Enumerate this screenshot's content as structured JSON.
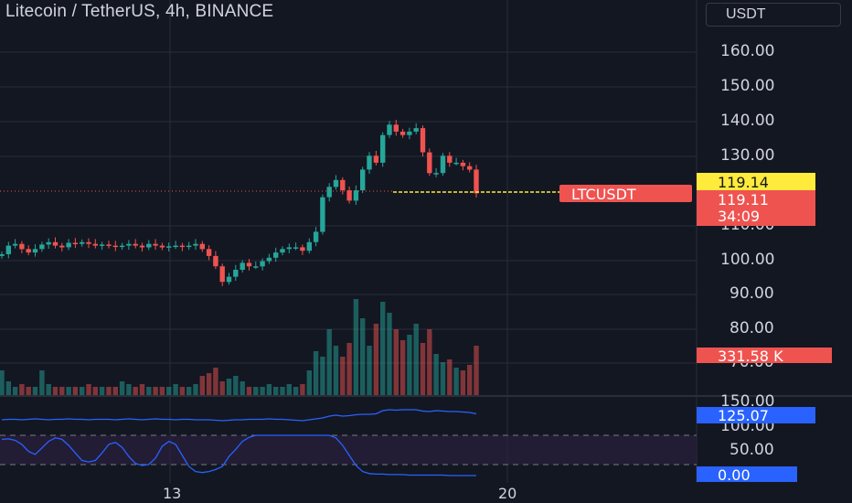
{
  "header": {
    "symbol_title": "Litecoin / TetherUS, 4h, BINANCE",
    "currency": "USDT"
  },
  "price_axis": {
    "ticks": [
      "160.00",
      "150.00",
      "140.00",
      "130.00",
      "110.00",
      "100.00",
      "90.00",
      "80.00",
      "70.00"
    ]
  },
  "tags": {
    "high_label": "119.14",
    "symbol_label": "LTCUSDT",
    "last_price": "119.11",
    "countdown": "34:09",
    "volume_label": "331.58 K"
  },
  "indicator_axis": {
    "ticks": [
      "150.00",
      "100.00",
      "50.00"
    ],
    "value_label": "125.07",
    "zero_label": "0.00"
  },
  "time_axis": {
    "labels": [
      "13",
      "20"
    ]
  },
  "colors": {
    "background": "#131722",
    "bull": "#26a69a",
    "bear": "#ef5350",
    "indicator_line": "#2962ff",
    "highlight": "#ffeb3b"
  },
  "chart_data": {
    "type": "candlestick",
    "ylim": [
      65,
      166
    ],
    "close": [
      101.5,
      104.0,
      104.5,
      103.0,
      102.0,
      103.0,
      104.3,
      105.0,
      104.0,
      103.5,
      104.8,
      104.5,
      105.0,
      104.5,
      104.0,
      104.3,
      104.0,
      103.6,
      104.0,
      104.5,
      104.0,
      103.5,
      104.5,
      104.0,
      103.5,
      103.8,
      104.0,
      103.6,
      104.0,
      104.5,
      103.0,
      101.0,
      98.0,
      93.5,
      95.0,
      97.0,
      99.0,
      98.0,
      98.0,
      99.5,
      100.5,
      102.0,
      103.0,
      103.5,
      103.5,
      102.5,
      105.0,
      108.0,
      118.0,
      121.0,
      123.0,
      120.0,
      117.0,
      120.0,
      126.0,
      130.0,
      128.0,
      136.0,
      139.0,
      137.0,
      136.0,
      137.0,
      138.0,
      131.0,
      125.0,
      125.0,
      130.0,
      128.0,
      128.0,
      127.0,
      126.0,
      119.11
    ],
    "volume": [
      9,
      5,
      3,
      4,
      3,
      3,
      9,
      4,
      3,
      3,
      3,
      3,
      3,
      4,
      3,
      3,
      3,
      3,
      5,
      4,
      3,
      4,
      3,
      3,
      3,
      3,
      4,
      3,
      3,
      4,
      7,
      8,
      10,
      5,
      6,
      7,
      5,
      3,
      3,
      3,
      4,
      3,
      3,
      4,
      3,
      4,
      9,
      16,
      14,
      24,
      18,
      14,
      19,
      35,
      28,
      18,
      26,
      34,
      30,
      24,
      20,
      22,
      26,
      19,
      24,
      15,
      12,
      13,
      10,
      9,
      11,
      18
    ],
    "indicator": [
      112,
      113,
      113,
      112,
      113,
      114,
      113,
      112,
      113,
      113,
      114,
      113,
      113,
      112,
      113,
      113,
      113,
      112,
      113,
      114,
      113,
      112,
      113,
      114,
      113,
      113,
      112,
      113,
      113,
      112,
      112,
      112,
      111,
      110,
      111,
      112,
      112,
      113,
      113,
      113,
      114,
      113,
      113,
      112,
      111,
      110,
      112,
      114,
      116,
      120,
      122,
      120,
      121,
      123,
      124,
      124,
      125,
      132,
      134,
      133,
      134,
      134,
      134,
      131,
      130,
      132,
      131,
      130,
      130,
      129,
      128,
      125.07
    ],
    "oscillator": [
      72,
      73,
      70,
      62,
      48,
      42,
      55,
      68,
      75,
      72,
      60,
      45,
      30,
      27,
      30,
      45,
      62,
      66,
      56,
      38,
      24,
      20,
      22,
      35,
      58,
      68,
      62,
      40,
      18,
      8,
      6,
      8,
      12,
      18,
      38,
      52,
      68,
      76,
      80,
      80,
      80,
      80,
      80,
      80,
      80,
      80,
      80,
      80,
      80,
      80,
      75,
      60,
      40,
      20,
      8,
      4,
      3,
      3,
      2,
      2,
      2,
      1,
      1,
      1,
      1,
      1,
      1,
      0,
      0,
      0,
      0,
      0
    ],
    "x_labels": [
      "13",
      "20"
    ]
  }
}
